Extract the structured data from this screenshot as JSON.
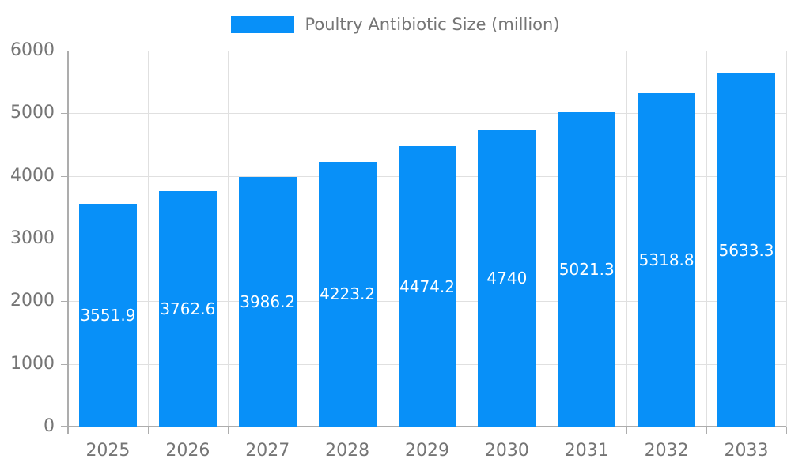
{
  "chart_data": {
    "type": "bar",
    "title": "",
    "legend": "Poultry Antibiotic Size (million)",
    "legend_position": "top",
    "categories": [
      "2025",
      "2026",
      "2027",
      "2028",
      "2029",
      "2030",
      "2031",
      "2032",
      "2033"
    ],
    "values": [
      3551.9,
      3762.6,
      3986.2,
      4223.2,
      4474.2,
      4740,
      5021.3,
      5318.8,
      5633.3
    ],
    "value_labels": [
      "3551.9",
      "3762.6",
      "3986.2",
      "4223.2",
      "4474.2",
      "4740",
      "5021.3",
      "5318.8",
      "5633.3"
    ],
    "xlabel": "",
    "ylabel": "",
    "ylim": [
      0,
      6000
    ],
    "y_ticks": [
      0,
      1000,
      2000,
      3000,
      4000,
      5000,
      6000
    ],
    "y_tick_labels": [
      "0",
      "1000",
      "2000",
      "3000",
      "4000",
      "5000",
      "6000"
    ],
    "grid": true,
    "colors": {
      "bar": "#0890F8",
      "bar_label": "#FFFFFF",
      "axis_text": "#757575",
      "grid_line": "#E0E0E0",
      "axis_line": "#ADADAD",
      "background": "#FFFFFF"
    }
  }
}
